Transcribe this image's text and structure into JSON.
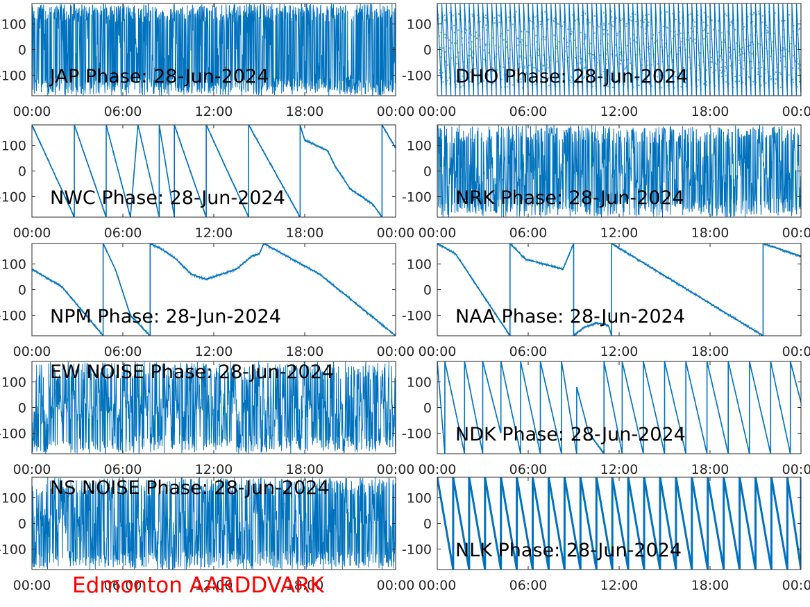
{
  "footer": {
    "text": "Edmonton AARDDVARK",
    "color": "#ff0000"
  },
  "style": {
    "line_color": "#0072bd",
    "axis_color": "#262626"
  },
  "chart_data": [
    {
      "type": "line",
      "title": "JAP Phase: 28-Jun-2024",
      "title_position": "bottom",
      "xlim": [
        "00:00",
        "24:00"
      ],
      "xticks": [
        "00:00",
        "06:00",
        "12:00",
        "18:00",
        "00:00"
      ],
      "ylim": [
        -180,
        180
      ],
      "yticks": [
        -100,
        0,
        100
      ],
      "yticklabels": [
        "-100",
        "0",
        "100"
      ],
      "grid": false,
      "pattern": "noise",
      "noise_density": 0.85
    },
    {
      "type": "line",
      "title": "DHO Phase: 28-Jun-2024",
      "title_position": "bottom",
      "xlim": [
        "00:00",
        "24:00"
      ],
      "xticks": [
        "00:00",
        "06:00",
        "12:00",
        "18:00",
        "00:00"
      ],
      "ylim": [
        -180,
        180
      ],
      "yticks": [
        -100,
        0,
        100
      ],
      "yticklabels": [
        "-100",
        "0",
        "100"
      ],
      "grid": false,
      "pattern": "fastwrap",
      "ramp_period_hours": 0.3
    },
    {
      "type": "line",
      "title": "NWC Phase: 28-Jun-2024",
      "title_position": "bottom",
      "xlim": [
        "00:00",
        "24:00"
      ],
      "xticks": [
        "00:00",
        "06:00",
        "12:00",
        "18:00",
        "00:00"
      ],
      "ylim": [
        -180,
        180
      ],
      "yticks": [
        -100,
        0,
        100
      ],
      "yticklabels": [
        "-100",
        "0",
        "100"
      ],
      "grid": false,
      "pattern": "piecewise",
      "points": [
        [
          0,
          180
        ],
        [
          2.8,
          -180
        ],
        [
          2.8,
          180
        ],
        [
          4.9,
          -180
        ],
        [
          4.9,
          180
        ],
        [
          6.5,
          -180
        ],
        [
          7.0,
          180
        ],
        [
          8.4,
          -180
        ],
        [
          8.4,
          180
        ],
        [
          9.4,
          -180
        ],
        [
          9.4,
          180
        ],
        [
          11.5,
          -180
        ],
        [
          11.5,
          180
        ],
        [
          14.3,
          -180
        ],
        [
          14.3,
          180
        ],
        [
          17.7,
          -180
        ],
        [
          17.7,
          180
        ],
        [
          18.0,
          120
        ],
        [
          19.5,
          80
        ],
        [
          20.0,
          20
        ],
        [
          21.0,
          -70
        ],
        [
          22.5,
          -130
        ],
        [
          23.1,
          -180
        ],
        [
          23.1,
          180
        ],
        [
          24,
          90
        ]
      ]
    },
    {
      "type": "line",
      "title": "NRK Phase: 28-Jun-2024",
      "title_position": "bottom",
      "xlim": [
        "00:00",
        "24:00"
      ],
      "xticks": [
        "00:00",
        "06:00",
        "12:00",
        "18:00",
        "00:00"
      ],
      "ylim": [
        -180,
        180
      ],
      "yticks": [
        -100,
        0,
        100
      ],
      "yticklabels": [
        "-100",
        "0",
        "100"
      ],
      "grid": false,
      "pattern": "noise",
      "noise_density": 0.55
    },
    {
      "type": "line",
      "title": "NPM Phase: 28-Jun-2024",
      "title_position": "bottom",
      "xlim": [
        "00:00",
        "24:00"
      ],
      "xticks": [
        "00:00",
        "06:00",
        "12:00",
        "18:00",
        "00:00"
      ],
      "ylim": [
        -180,
        180
      ],
      "yticks": [
        -100,
        0,
        100
      ],
      "yticklabels": [
        "-100",
        "0",
        "100"
      ],
      "grid": false,
      "pattern": "piecewise",
      "points": [
        [
          0,
          80
        ],
        [
          2.0,
          10
        ],
        [
          4.7,
          -180
        ],
        [
          4.7,
          180
        ],
        [
          5.5,
          80
        ],
        [
          6.5,
          -100
        ],
        [
          7.8,
          -180
        ],
        [
          7.8,
          180
        ],
        [
          8.5,
          160
        ],
        [
          9.5,
          120
        ],
        [
          10.5,
          60
        ],
        [
          11.5,
          40
        ],
        [
          12.5,
          60
        ],
        [
          13.5,
          80
        ],
        [
          14.5,
          130
        ],
        [
          15.0,
          140
        ],
        [
          15.3,
          180
        ],
        [
          19.0,
          60
        ],
        [
          24,
          -180
        ]
      ]
    },
    {
      "type": "line",
      "title": "NAA Phase: 28-Jun-2024",
      "title_position": "bottom",
      "xlim": [
        "00:00",
        "24:00"
      ],
      "xticks": [
        "00:00",
        "06:00",
        "12:00",
        "18:00",
        "00:00"
      ],
      "ylim": [
        -180,
        180
      ],
      "yticks": [
        -100,
        0,
        100
      ],
      "yticklabels": [
        "-100",
        "0",
        "100"
      ],
      "grid": false,
      "pattern": "piecewise",
      "points": [
        [
          0,
          180
        ],
        [
          1.2,
          140
        ],
        [
          4.8,
          -180
        ],
        [
          4.8,
          180
        ],
        [
          5.8,
          120
        ],
        [
          7.0,
          100
        ],
        [
          8.3,
          80
        ],
        [
          9.0,
          180
        ],
        [
          9.0,
          -180
        ],
        [
          9.6,
          -150
        ],
        [
          10.5,
          -130
        ],
        [
          11.3,
          -140
        ],
        [
          11.5,
          -180
        ],
        [
          11.5,
          180
        ],
        [
          21.5,
          -180
        ],
        [
          21.5,
          180
        ],
        [
          24,
          130
        ]
      ]
    },
    {
      "type": "line",
      "title": "EW NOISE Phase: 28-Jun-2024",
      "title_position": "top",
      "xlim": [
        "00:00",
        "24:00"
      ],
      "xticks": [
        "00:00",
        "06:00",
        "12:00",
        "18:00",
        "00:00"
      ],
      "ylim": [
        -180,
        180
      ],
      "yticks": [
        -100,
        0,
        100
      ],
      "yticklabels": [
        "-100",
        "0",
        "100"
      ],
      "grid": false,
      "pattern": "noise",
      "noise_density": 0.5
    },
    {
      "type": "line",
      "title": "NDK Phase: 28-Jun-2024",
      "title_position": "bottom",
      "xlim": [
        "00:00",
        "24:00"
      ],
      "xticks": [
        "00:00",
        "06:00",
        "12:00",
        "18:00",
        "00:00"
      ],
      "ylim": [
        -180,
        180
      ],
      "yticks": [
        -100,
        0,
        100
      ],
      "yticklabels": [
        "-100",
        "0",
        "100"
      ],
      "grid": false,
      "pattern": "piecewise",
      "points": [
        [
          0,
          180
        ],
        [
          0.5,
          -180
        ],
        [
          0.5,
          180
        ],
        [
          1.8,
          -180
        ],
        [
          1.8,
          180
        ],
        [
          3.0,
          -180
        ],
        [
          3.0,
          180
        ],
        [
          4.2,
          -100
        ],
        [
          4.2,
          180
        ],
        [
          5.5,
          -180
        ],
        [
          5.5,
          180
        ],
        [
          6.8,
          -180
        ],
        [
          6.8,
          180
        ],
        [
          8.2,
          -180
        ],
        [
          8.2,
          180
        ],
        [
          9.2,
          -180
        ],
        [
          9.2,
          80
        ],
        [
          10.0,
          -100
        ],
        [
          11.0,
          -180
        ],
        [
          11.0,
          180
        ],
        [
          12.2,
          -180
        ],
        [
          12.2,
          180
        ],
        [
          13.6,
          -180
        ],
        [
          13.6,
          180
        ],
        [
          15.0,
          -180
        ],
        [
          15.0,
          180
        ],
        [
          16.4,
          -180
        ],
        [
          16.4,
          180
        ],
        [
          17.8,
          -180
        ],
        [
          17.8,
          180
        ],
        [
          19.2,
          -180
        ],
        [
          19.2,
          180
        ],
        [
          20.6,
          -180
        ],
        [
          20.6,
          180
        ],
        [
          22.0,
          -180
        ],
        [
          22.0,
          180
        ],
        [
          23.3,
          -180
        ],
        [
          23.3,
          180
        ],
        [
          24,
          20
        ]
      ]
    },
    {
      "type": "line",
      "title": "NS NOISE Phase: 28-Jun-2024",
      "title_position": "top",
      "xlim": [
        "00:00",
        "24:00"
      ],
      "xticks": [
        "00:00",
        "06:00",
        "12:00",
        "18:00",
        "00:00"
      ],
      "ylim": [
        -180,
        180
      ],
      "yticks": [
        -100,
        0,
        100
      ],
      "yticklabels": [
        "-100",
        "0",
        "100"
      ],
      "grid": false,
      "pattern": "noise",
      "noise_density": 0.6
    },
    {
      "type": "line",
      "title": "NLK Phase: 28-Jun-2024",
      "title_position": "bottom",
      "xlim": [
        "00:00",
        "24:00"
      ],
      "xticks": [
        "00:00",
        "06:00",
        "12:00",
        "18:00",
        "00:00"
      ],
      "ylim": [
        -180,
        180
      ],
      "yticks": [
        -100,
        0,
        100
      ],
      "yticklabels": [
        "-100",
        "0",
        "100"
      ],
      "grid": false,
      "pattern": "sawtooth",
      "ramp_period_hours": 1.05
    }
  ]
}
